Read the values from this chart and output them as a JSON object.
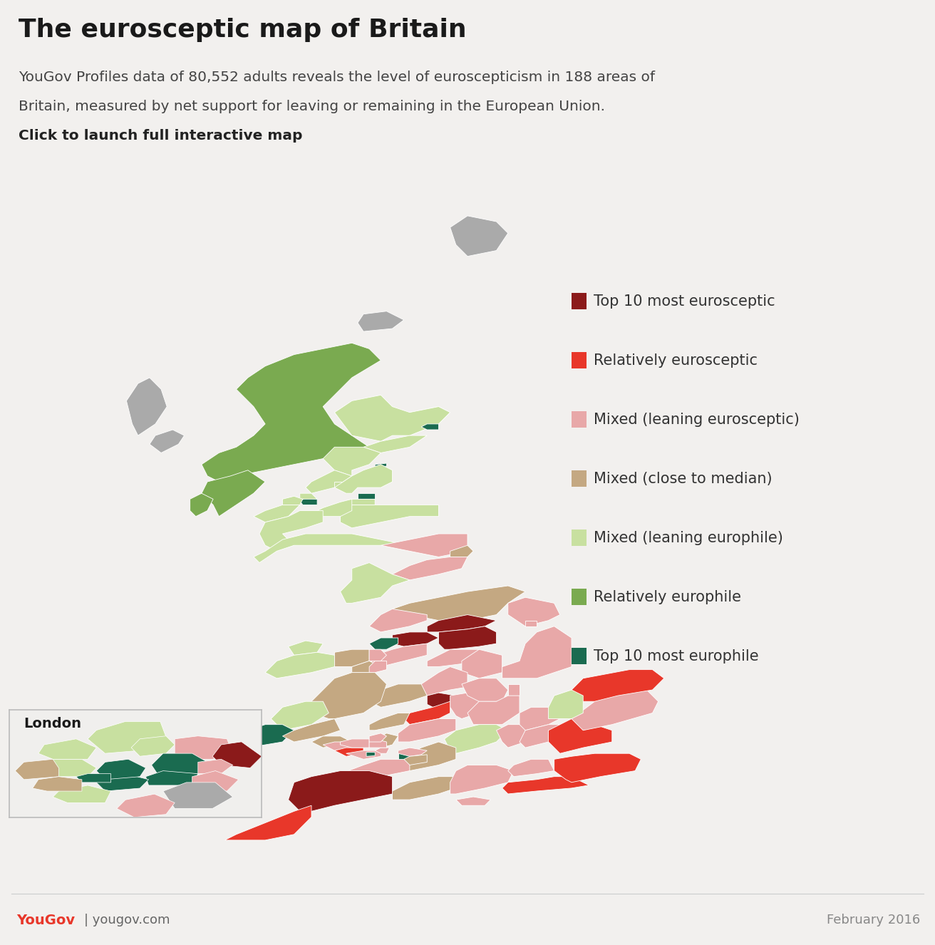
{
  "title": "The eurosceptic map of Britain",
  "subtitle_line1": "YouGov Profiles data of 80,552 adults reveals the level of euroscepticism in 188 areas of",
  "subtitle_line2": "Britain, measured by net support for leaving or remaining in the European Union.",
  "subtitle_line3": "Click to launch full interactive map",
  "background_color": "#f2f0ee",
  "map_background": "#ffffff",
  "header_bg": "#e8e6e3",
  "legend_items": [
    {
      "label": "Top 10 most eurosceptic",
      "color": "#8b1a1a"
    },
    {
      "label": "Relatively eurosceptic",
      "color": "#e8372a"
    },
    {
      "label": "Mixed (leaning eurosceptic)",
      "color": "#e8a8a8"
    },
    {
      "label": "Mixed (close to median)",
      "color": "#c4a882"
    },
    {
      "label": "Mixed (leaning europhile)",
      "color": "#c8e0a0"
    },
    {
      "label": "Relatively europhile",
      "color": "#7aaa50"
    },
    {
      "label": "Top 10 most europhile",
      "color": "#1a6b50"
    }
  ],
  "footer_right": "February 2016",
  "london_label": "London",
  "yougov_red": "#e8372a",
  "title_fontsize": 26,
  "subtitle_fontsize": 14.5,
  "legend_fontsize": 15,
  "footer_fontsize": 13,
  "no_data_color": "#aaaaaa"
}
